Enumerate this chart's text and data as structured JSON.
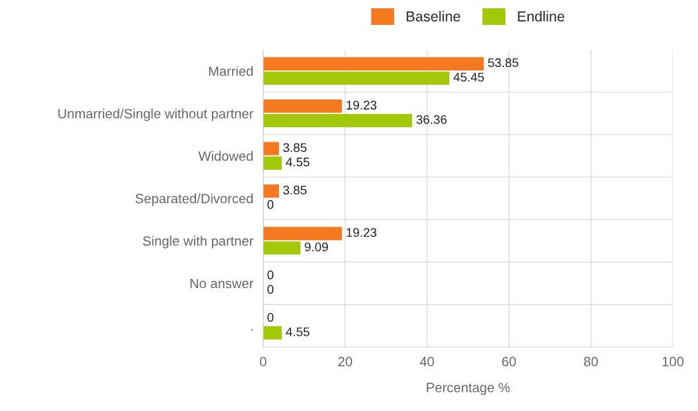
{
  "chart_data": {
    "type": "bar",
    "orientation": "horizontal",
    "xlabel": "Percentage %",
    "categories": [
      "Married",
      "Unmarried/Single without partner",
      "Widowed",
      "Separated/Divorced",
      "Single with partner",
      "No answer",
      "."
    ],
    "series": [
      {
        "name": "Baseline",
        "color": "#f47920",
        "values": [
          53.85,
          19.23,
          3.85,
          3.85,
          19.23,
          0,
          0
        ]
      },
      {
        "name": "Endline",
        "color": "#a3c80a",
        "values": [
          45.45,
          36.36,
          4.55,
          0,
          9.09,
          0,
          4.55
        ]
      }
    ],
    "xlim": [
      0,
      100
    ],
    "xticks": [
      0,
      20,
      40,
      60,
      80,
      100
    ],
    "grid": true,
    "legend": "top",
    "data_labels": true
  }
}
